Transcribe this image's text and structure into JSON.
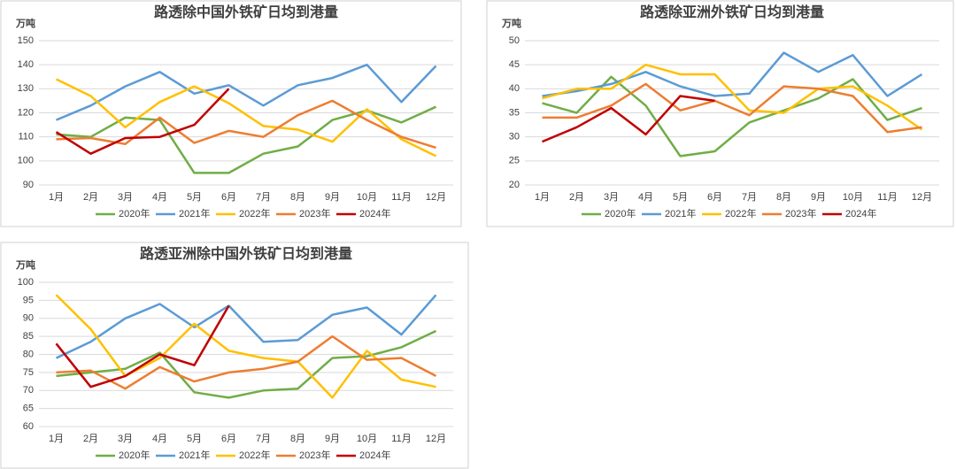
{
  "chart_data": [
    {
      "type": "line",
      "title": "路透除中国外铁矿日均到港量",
      "y_label": "万吨",
      "categories": [
        "1月",
        "2月",
        "3月",
        "4月",
        "5月",
        "6月",
        "7月",
        "8月",
        "9月",
        "10月",
        "11月",
        "12月"
      ],
      "ylim": [
        90,
        150
      ],
      "yticks": [
        90,
        100,
        110,
        120,
        130,
        140,
        150
      ],
      "grid": true,
      "legend": "bottom",
      "series": [
        {
          "name": "2020年",
          "color": "#70ad47",
          "values": [
            111,
            110,
            118,
            117,
            95,
            95,
            103,
            106,
            117,
            121,
            116,
            122.5
          ]
        },
        {
          "name": "2021年",
          "color": "#5b9bd5",
          "values": [
            117,
            123,
            131,
            137,
            128,
            131.5,
            123,
            131.5,
            134.5,
            140,
            124.5,
            139.5
          ]
        },
        {
          "name": "2022年",
          "color": "#ffc000",
          "values": [
            134,
            127,
            114,
            124.5,
            131,
            124,
            114.5,
            113,
            108,
            121.5,
            109,
            102
          ]
        },
        {
          "name": "2023年",
          "color": "#ed7d31",
          "values": [
            109,
            109.5,
            107,
            118,
            107.5,
            112.5,
            110,
            119,
            125,
            117,
            110,
            105.5
          ]
        },
        {
          "name": "2024年",
          "color": "#c00000",
          "values": [
            112,
            103,
            109.5,
            110,
            115,
            130,
            null,
            null,
            null,
            null,
            null,
            null
          ]
        }
      ]
    },
    {
      "type": "line",
      "title": "路透除亚洲外铁矿日均到港量",
      "y_label": "万吨",
      "categories": [
        "1月",
        "2月",
        "3月",
        "4月",
        "5月",
        "6月",
        "7月",
        "8月",
        "9月",
        "10月",
        "11月",
        "12月"
      ],
      "ylim": [
        20,
        50
      ],
      "yticks": [
        20,
        25,
        30,
        35,
        40,
        45,
        50
      ],
      "grid": true,
      "legend": "bottom",
      "series": [
        {
          "name": "2020年",
          "color": "#70ad47",
          "values": [
            37,
            35,
            42.5,
            36.5,
            26,
            27,
            33,
            35.5,
            38,
            42,
            33.5,
            36
          ]
        },
        {
          "name": "2021年",
          "color": "#5b9bd5",
          "values": [
            38.5,
            39.5,
            41,
            43.5,
            40.5,
            38.5,
            39,
            47.5,
            43.5,
            47,
            38.5,
            43
          ]
        },
        {
          "name": "2022年",
          "color": "#ffc000",
          "values": [
            38,
            40,
            40,
            45,
            43,
            43,
            35.5,
            35,
            40,
            40.5,
            36.5,
            31.5
          ]
        },
        {
          "name": "2023年",
          "color": "#ed7d31",
          "values": [
            34,
            34,
            36.5,
            41,
            35.5,
            37.5,
            34.5,
            40.5,
            40,
            38.5,
            31,
            32
          ]
        },
        {
          "name": "2024年",
          "color": "#c00000",
          "values": [
            29,
            32,
            36,
            30.5,
            38.5,
            37.5,
            null,
            null,
            null,
            null,
            null,
            null
          ]
        }
      ]
    },
    {
      "type": "line",
      "title": "路透亚洲除中国外铁矿日均到港量",
      "y_label": "万吨",
      "categories": [
        "1月",
        "2月",
        "3月",
        "4月",
        "5月",
        "6月",
        "7月",
        "8月",
        "9月",
        "10月",
        "11月",
        "12月"
      ],
      "ylim": [
        60,
        100
      ],
      "yticks": [
        60,
        65,
        70,
        75,
        80,
        85,
        90,
        95,
        100
      ],
      "grid": true,
      "legend": "bottom",
      "series": [
        {
          "name": "2020年",
          "color": "#70ad47",
          "values": [
            74,
            75,
            76,
            80.5,
            69.5,
            68,
            70,
            70.5,
            79,
            79.5,
            82,
            86.5
          ]
        },
        {
          "name": "2021年",
          "color": "#5b9bd5",
          "values": [
            79,
            83.5,
            90,
            94,
            87.5,
            93.5,
            83.5,
            84,
            91,
            93,
            85.5,
            96.5
          ]
        },
        {
          "name": "2022年",
          "color": "#ffc000",
          "values": [
            96.5,
            87,
            74,
            79,
            88.5,
            81,
            79,
            78,
            68,
            81,
            73,
            71
          ]
        },
        {
          "name": "2023年",
          "color": "#ed7d31",
          "values": [
            75,
            75.5,
            70.5,
            76.5,
            72.5,
            75,
            76,
            78,
            85,
            78.5,
            79,
            74
          ]
        },
        {
          "name": "2024年",
          "color": "#c00000",
          "values": [
            83,
            71,
            74,
            80,
            77,
            93.5,
            null,
            null,
            null,
            null,
            null,
            null
          ]
        }
      ]
    }
  ]
}
